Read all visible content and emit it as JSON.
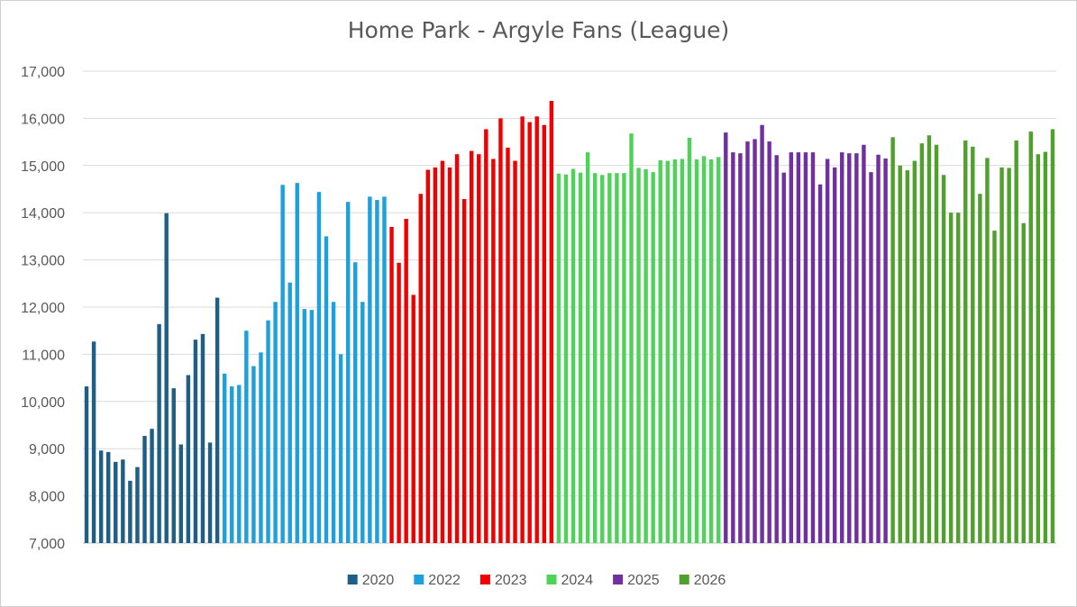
{
  "chart_data": {
    "type": "bar",
    "title": "Home Park - Argyle Fans (League)",
    "xlabel": "",
    "ylabel": "",
    "ylim": [
      7000,
      17000
    ],
    "yticks": [
      "7,000",
      "8,000",
      "9,000",
      "10,000",
      "11,000",
      "12,000",
      "13,000",
      "14,000",
      "15,000",
      "16,000",
      "17,000"
    ],
    "grid": true,
    "legend_position": "bottom",
    "series": [
      {
        "name": "2020",
        "color": "#1f5f85",
        "values": [
          10320,
          11270,
          8960,
          8930,
          8720,
          8770,
          8320,
          8610,
          9270,
          9420,
          11640,
          13990,
          10280,
          9090,
          10560,
          11310,
          11430,
          9130,
          12200
        ]
      },
      {
        "name": "2022",
        "color": "#1ea0dc",
        "values": [
          10590,
          10320,
          10350,
          11500,
          10750,
          11040,
          11720,
          12110,
          14590,
          12520,
          14630,
          11960,
          11940,
          14440,
          13500,
          12110,
          11000,
          14230,
          12950,
          12110,
          14340,
          14270,
          14340
        ]
      },
      {
        "name": "2023",
        "color": "#f00000",
        "values": [
          13700,
          12940,
          13870,
          12260,
          14400,
          14910,
          14960,
          15100,
          14960,
          15240,
          14290,
          15310,
          15240,
          15770,
          15140,
          16000,
          15380,
          15100,
          16040,
          15920,
          16040,
          15860,
          16370
        ]
      },
      {
        "name": "2024",
        "color": "#4fd25a",
        "values": [
          14830,
          14810,
          14930,
          14850,
          15280,
          14840,
          14800,
          14840,
          14840,
          14840,
          15680,
          14950,
          14920,
          14860,
          15110,
          15100,
          15130,
          15140,
          15590,
          15130,
          15200,
          15130,
          15180
        ]
      },
      {
        "name": "2025",
        "color": "#7030a0",
        "values": [
          15700,
          15280,
          15260,
          15510,
          15560,
          15860,
          15510,
          15220,
          14850,
          15280,
          15280,
          15280,
          15280,
          14600,
          15140,
          14960,
          15280,
          15260,
          15260,
          15440,
          14860,
          15230,
          15150
        ]
      },
      {
        "name": "2026",
        "color": "#50a02d",
        "values": [
          15600,
          15000,
          14900,
          15100,
          15470,
          15640,
          15440,
          14800,
          14000,
          14000,
          15530,
          15400,
          14400,
          15160,
          13620,
          14960,
          14950,
          15530,
          13780,
          15720,
          15240,
          15290,
          15770
        ]
      }
    ]
  }
}
